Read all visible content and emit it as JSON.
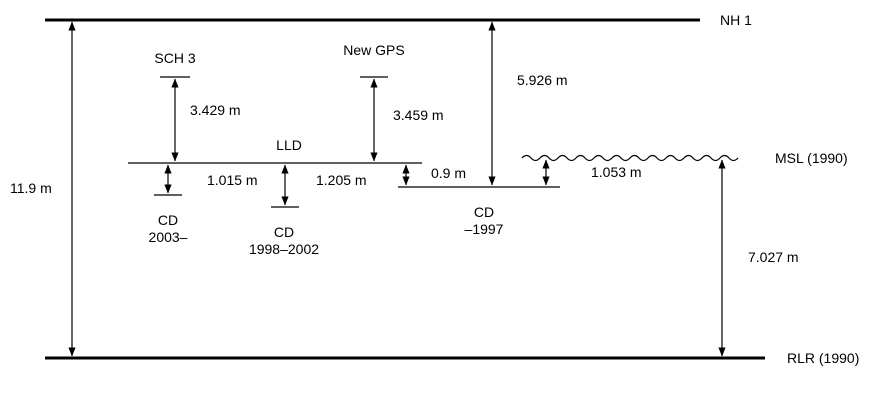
{
  "datums": {
    "nh1": "NH 1",
    "msl": "MSL (1990)",
    "rlr": "RLR (1990)",
    "lld": "LLD",
    "sch3": "SCH 3",
    "new_gps": "New GPS",
    "cd_2003": [
      "CD",
      "2003–"
    ],
    "cd_1998": [
      "CD",
      "1998–2002"
    ],
    "cd_1997": [
      "CD",
      "–1997"
    ]
  },
  "measurements": {
    "total": "11.9 m",
    "sch3_to_lld": "3.429 m",
    "gps_to_lld": "3.459 m",
    "nh1_to_cd1997": "5.926 m",
    "lld_to_cd2003": "1.015 m",
    "lld_to_cd1998": "1.205 m",
    "lld_to_cd1997": "0.9 m",
    "cd1997_to_msl": "1.053 m",
    "msl_to_rlr": "7.027 m"
  }
}
